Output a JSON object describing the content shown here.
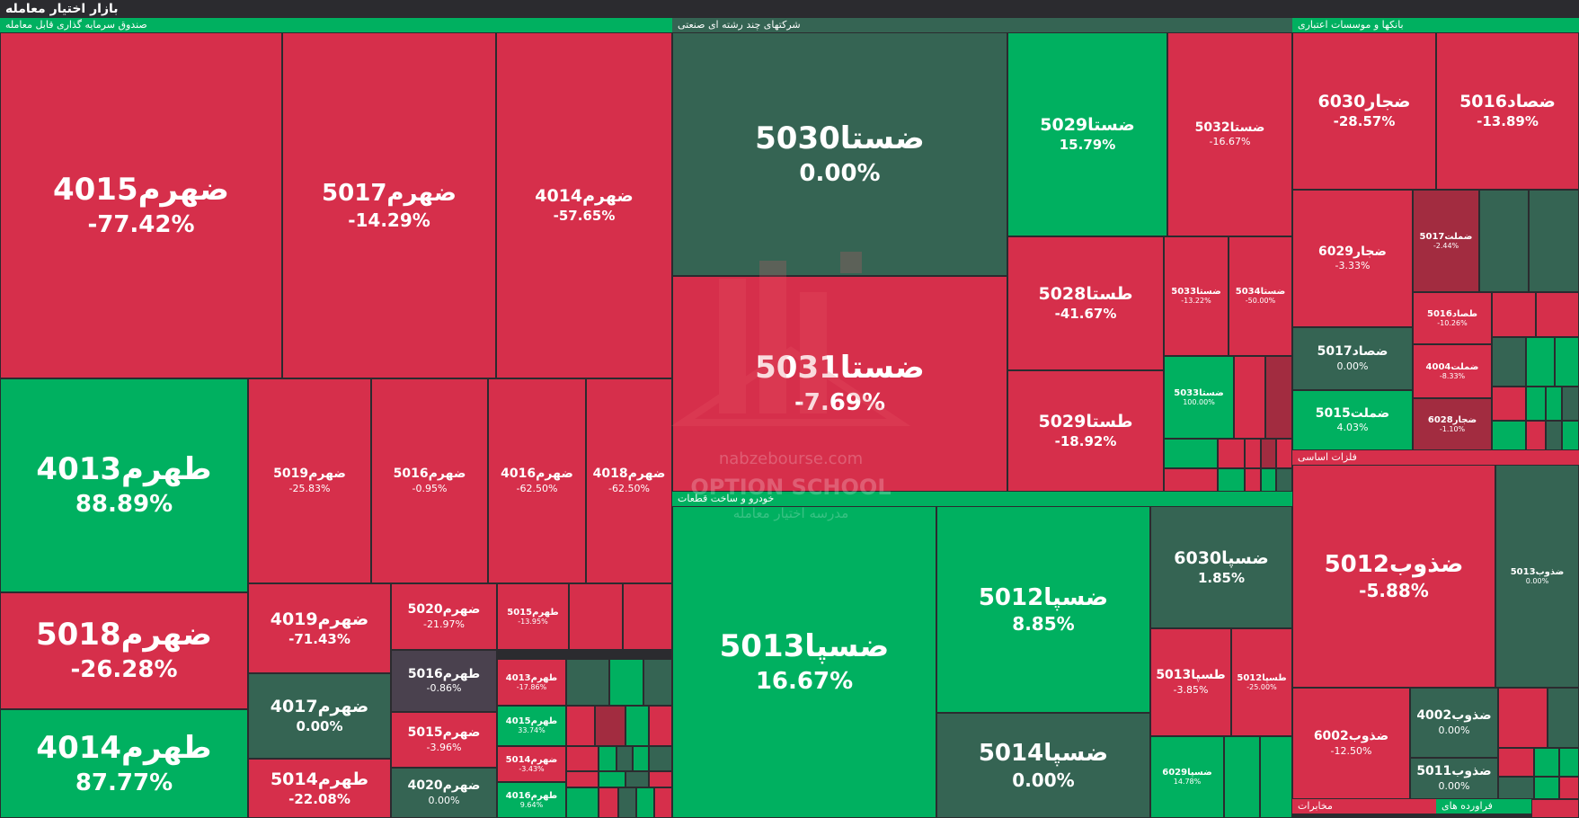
{
  "page_title": "بازار اختیار معامله",
  "watermark": {
    "site": "nabzebourse.com",
    "brand": "OPTION SCHOOL",
    "subtitle": "مدرسه اختیار معامله"
  },
  "sectors": {
    "fund": "صندوق سرمایه گذاری قابل معامله",
    "multi": "شرکتهای چند رشته ای صنعتی",
    "bank": "بانکها و موسسات اعتباری",
    "auto": "خودرو و ساخت قطعات",
    "metal": "فلزات اساسی",
    "telecom": "مخابرات",
    "refinery": "فراورده های"
  },
  "tiles": {
    "fund": [
      {
        "name": "ضهرم4015",
        "pct": "-77.42%"
      },
      {
        "name": "ضهرم5017",
        "pct": "-14.29%"
      },
      {
        "name": "ضهرم4014",
        "pct": "-57.65%"
      },
      {
        "name": "طهرم4013",
        "pct": "88.89%"
      },
      {
        "name": "ضهرم5018",
        "pct": "-26.28%"
      },
      {
        "name": "طهرم4014",
        "pct": "87.77%"
      },
      {
        "name": "ضهرم5019",
        "pct": "-25.83%"
      },
      {
        "name": "ضهرم5016",
        "pct": "-0.95%"
      },
      {
        "name": "ضهرم4016",
        "pct": "-62.50%"
      },
      {
        "name": "ضهرم4018",
        "pct": "-62.50%"
      },
      {
        "name": "ضهرم4019",
        "pct": "-71.43%"
      },
      {
        "name": "ضهرم5020",
        "pct": "-21.97%"
      },
      {
        "name": "طهرم5015",
        "pct": "-13.95%"
      },
      {
        "name": "طهرم5016",
        "pct": "-0.86%"
      },
      {
        "name": "ضهرم4017",
        "pct": "0.00%"
      },
      {
        "name": "ضهرم5015",
        "pct": "-3.96%"
      },
      {
        "name": "طهرم4013",
        "pct": "-17.86%"
      },
      {
        "name": "طهرم4015",
        "pct": "33.74%"
      },
      {
        "name": "طهرم5014",
        "pct": "-22.08%"
      },
      {
        "name": "ضهرم4020",
        "pct": "0.00%"
      },
      {
        "name": "ضهرم5014",
        "pct": "-3.43%"
      },
      {
        "name": "طهرم4016",
        "pct": "9.64%"
      }
    ],
    "multi": [
      {
        "name": "ضستا5030",
        "pct": "0.00%"
      },
      {
        "name": "ضستا5029",
        "pct": "15.79%"
      },
      {
        "name": "ضستا5032",
        "pct": "-16.67%"
      },
      {
        "name": "ضستا5031",
        "pct": "-7.69%"
      },
      {
        "name": "طستا5028",
        "pct": "-41.67%"
      },
      {
        "name": "ضستا5033",
        "pct": "-13.22%"
      },
      {
        "name": "ضستا5034",
        "pct": "-50.00%"
      },
      {
        "name": "طستا5029",
        "pct": "-18.92%"
      },
      {
        "name": "ضستا5033",
        "pct": "100.00%"
      }
    ],
    "bank": [
      {
        "name": "ضجار6030",
        "pct": "-28.57%"
      },
      {
        "name": "ضصاد5016",
        "pct": "-13.89%"
      },
      {
        "name": "ضجار6029",
        "pct": "-3.33%"
      },
      {
        "name": "ضملت5017",
        "pct": "-2.44%"
      },
      {
        "name": "طصاد5016",
        "pct": "-10.26%"
      },
      {
        "name": "ضصاد5017",
        "pct": "0.00%"
      },
      {
        "name": "ضملت4004",
        "pct": "-8.33%"
      },
      {
        "name": "ضملت5015",
        "pct": "4.03%"
      },
      {
        "name": "ضجار6028",
        "pct": "-1.10%"
      }
    ],
    "auto": [
      {
        "name": "ضسپا5013",
        "pct": "16.67%"
      },
      {
        "name": "ضسپا5012",
        "pct": "8.85%"
      },
      {
        "name": "ضسپا6030",
        "pct": "1.85%"
      },
      {
        "name": "ضسپا5014",
        "pct": "0.00%"
      },
      {
        "name": "طسپا5013",
        "pct": "-3.85%"
      },
      {
        "name": "طسپا5012",
        "pct": "-25.00%"
      },
      {
        "name": "ضسپا6029",
        "pct": "14.78%"
      }
    ],
    "metal": [
      {
        "name": "ضذوب5012",
        "pct": "-5.88%"
      },
      {
        "name": "ضذوب5013",
        "pct": "0.00%"
      },
      {
        "name": "ضذوب6002",
        "pct": "-12.50%"
      },
      {
        "name": "ضذوب4002",
        "pct": "0.00%"
      },
      {
        "name": "ضذوب5011",
        "pct": "0.00%"
      }
    ]
  }
}
